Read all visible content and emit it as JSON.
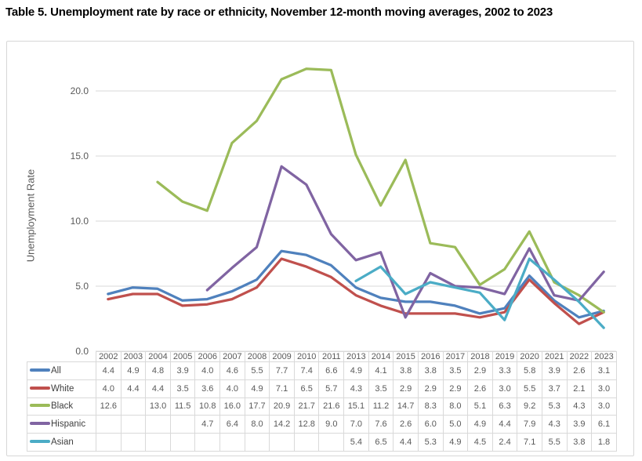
{
  "page": {
    "title": "Table 5. Unemployment rate by race or ethnicity, November 12-month moving averages, 2002 to 2023"
  },
  "colors": {
    "chart_border": "#d7d7d7",
    "gridline": "#d9d9d9",
    "table_border": "#d9d9d9",
    "axis_text": "#595959",
    "legend_text": "#404040"
  },
  "chart_data": {
    "type": "line",
    "title": "Table 5. Unemployment rate by race or ethnicity, November 12-month moving averages, 2002 to 2023",
    "xlabel": "",
    "ylabel": "Unemployment Rate",
    "categories": [
      "2002",
      "2003",
      "2004",
      "2005",
      "2006",
      "2007",
      "2008",
      "2009",
      "2010",
      "2011",
      "2013",
      "2014",
      "2015",
      "2016",
      "2017",
      "2018",
      "2019",
      "2020",
      "2021",
      "2022",
      "2023"
    ],
    "yticks": [
      0,
      5,
      10,
      15,
      20
    ],
    "ylim": [
      0,
      22
    ],
    "grid": true,
    "legend_position": "data-table-left-column",
    "show_data_table": true,
    "series": [
      {
        "name": "All",
        "color": "#4F81BD",
        "values": [
          4.4,
          4.9,
          4.8,
          3.9,
          4.0,
          4.6,
          5.5,
          7.7,
          7.4,
          6.6,
          4.9,
          4.1,
          3.8,
          3.8,
          3.5,
          2.9,
          3.3,
          5.8,
          3.9,
          2.6,
          3.1
        ]
      },
      {
        "name": "White",
        "color": "#C0504D",
        "values": [
          4.0,
          4.4,
          4.4,
          3.5,
          3.6,
          4.0,
          4.9,
          7.1,
          6.5,
          5.7,
          4.3,
          3.5,
          2.9,
          2.9,
          2.9,
          2.6,
          3.0,
          5.5,
          3.7,
          2.1,
          3.0
        ]
      },
      {
        "name": "Black",
        "color": "#9BBB59",
        "values": [
          12.6,
          null,
          13.0,
          11.5,
          10.8,
          16.0,
          17.7,
          20.9,
          21.7,
          21.6,
          15.1,
          11.2,
          14.7,
          8.3,
          8.0,
          5.1,
          6.3,
          9.2,
          5.3,
          4.3,
          3.0
        ]
      },
      {
        "name": "Hispanic",
        "color": "#8064A2",
        "values": [
          null,
          null,
          null,
          null,
          4.7,
          6.4,
          8.0,
          14.2,
          12.8,
          9.0,
          7.0,
          7.6,
          2.6,
          6.0,
          5.0,
          4.9,
          4.4,
          7.9,
          4.3,
          3.9,
          6.1
        ]
      },
      {
        "name": "Asian",
        "color": "#4BACC6",
        "values": [
          null,
          null,
          null,
          null,
          null,
          null,
          null,
          null,
          null,
          null,
          5.4,
          6.5,
          4.4,
          5.3,
          4.9,
          4.5,
          2.4,
          7.1,
          5.5,
          3.8,
          1.8
        ]
      }
    ]
  }
}
